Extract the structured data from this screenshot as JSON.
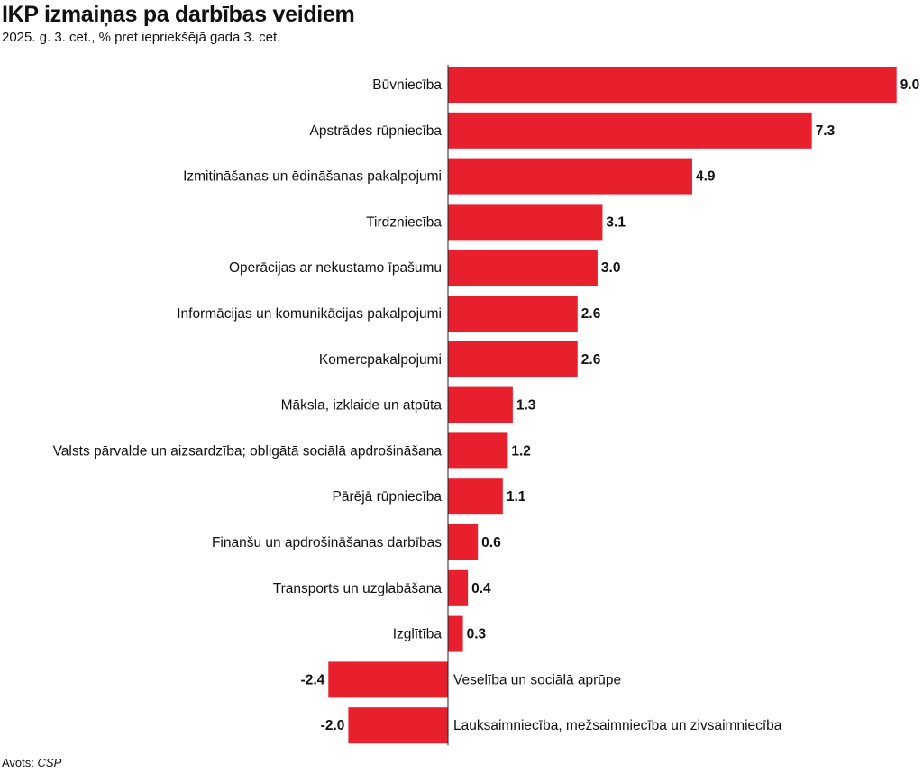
{
  "chart_data": {
    "type": "bar",
    "orientation": "horizontal",
    "title": "IKP izmaiņas pa darbības veidiem",
    "subtitle": "2025. g. 3. cet., % pret iepriekšējā gada 3. cet.",
    "categories": [
      "Būvniecība",
      "Apstrādes rūpniecība",
      "Izmitināšanas un ēdināšanas pakalpojumi",
      "Tirdzniecība",
      "Operācijas ar nekustamo īpašumu",
      "Informācijas un komunikācijas pakalpojumi",
      "Komercpakalpojumi",
      "Māksla, izklaide un atpūta",
      "Valsts pārvalde un aizsardzība; obligātā sociālā apdrošināšana",
      "Pārējā rūpniecība",
      "Finanšu un apdrošināšanas darbības",
      "Transports un uzglabāšana",
      "Izglītība",
      "Veselība un sociālā aprūpe",
      "Lauksaimniecība, mežsaimniecība un zivsaimniecība"
    ],
    "values": [
      9.0,
      7.3,
      4.9,
      3.1,
      3.0,
      2.6,
      2.6,
      1.3,
      1.2,
      1.1,
      0.6,
      0.4,
      0.3,
      -2.4,
      -2.0
    ],
    "value_labels": [
      "9.0",
      "7.3",
      "4.9",
      "3.1",
      "3.0",
      "2.6",
      "2.6",
      "1.3",
      "1.2",
      "1.1",
      "0.6",
      "0.4",
      "0.3",
      "-2.4",
      "-2.0"
    ],
    "bar_color": "#e8202e",
    "xlim": [
      -2.4,
      9.0
    ],
    "grid": false,
    "legend": "none"
  },
  "source": {
    "label": "Avots:",
    "name": "CSP"
  }
}
